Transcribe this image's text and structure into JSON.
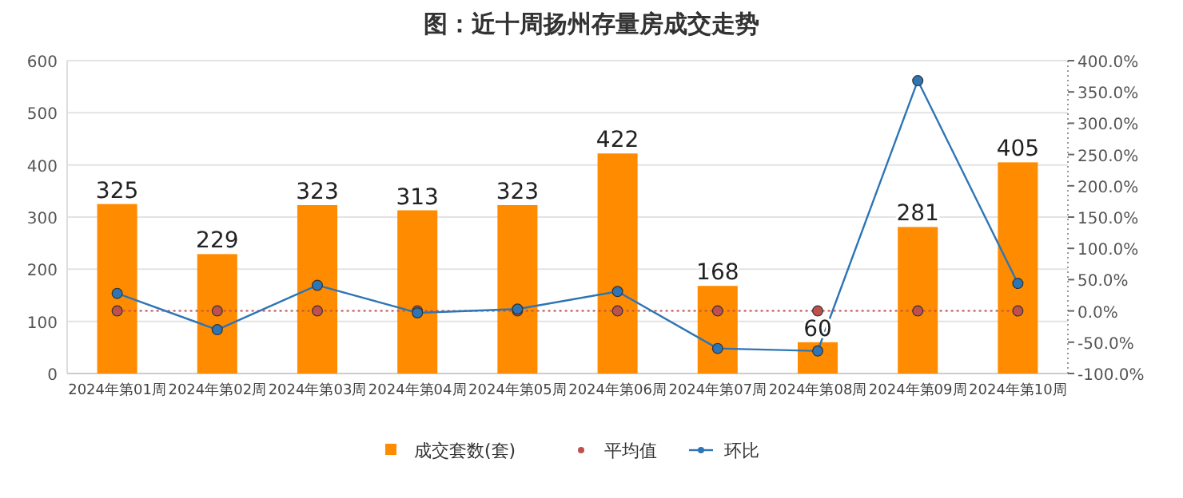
{
  "chart_data": {
    "type": "bar",
    "title": "图：近十周扬州存量房成交走势",
    "categories": [
      "2024年第01周",
      "2024年第02周",
      "2024年第03周",
      "2024年第04周",
      "2024年第05周",
      "2024年第06周",
      "2024年第07周",
      "2024年第08周",
      "2024年第09周",
      "2024年第10周"
    ],
    "series": [
      {
        "name": "成交套数(套)",
        "color": "#ff8c00",
        "values": [
          325,
          229,
          323,
          313,
          323,
          422,
          168,
          60,
          281,
          405
        ],
        "value_labels": [
          "325",
          "229",
          "323",
          "313",
          "323",
          "422",
          "168",
          "60",
          "281",
          "405"
        ]
      },
      {
        "name": "平均值",
        "type": "line",
        "axis": "y2",
        "color": "#c0504d",
        "line_style": "dotted",
        "values": [
          0,
          0,
          0,
          0,
          0,
          0,
          0,
          0,
          0,
          0
        ]
      },
      {
        "name": "环比",
        "type": "line",
        "axis": "y2",
        "color": "#2e75b6",
        "line_style": "solid",
        "values": [
          28,
          -30,
          41,
          -3,
          3,
          31,
          -60,
          -64,
          368,
          44
        ]
      }
    ],
    "ylim": [
      0,
      600
    ],
    "yticks": [
      0,
      100,
      200,
      300,
      400,
      500,
      600
    ],
    "y2lim": [
      -100,
      400
    ],
    "y2ticks": [
      {
        "value": -100,
        "label": "-100.0%"
      },
      {
        "value": -50,
        "label": "-50.0%"
      },
      {
        "value": 0,
        "label": "0.0%"
      },
      {
        "value": 50,
        "label": "50.0%"
      },
      {
        "value": 100,
        "label": "100.0%"
      },
      {
        "value": 150,
        "label": "150.0%"
      },
      {
        "value": 200,
        "label": "200.0%"
      },
      {
        "value": 250,
        "label": "250.0%"
      },
      {
        "value": 300,
        "label": "300.0%"
      },
      {
        "value": 350,
        "label": "350.0%"
      },
      {
        "value": 400,
        "label": "400.0%"
      }
    ],
    "grid": "y",
    "legend": "bottom",
    "marker": "circle"
  }
}
